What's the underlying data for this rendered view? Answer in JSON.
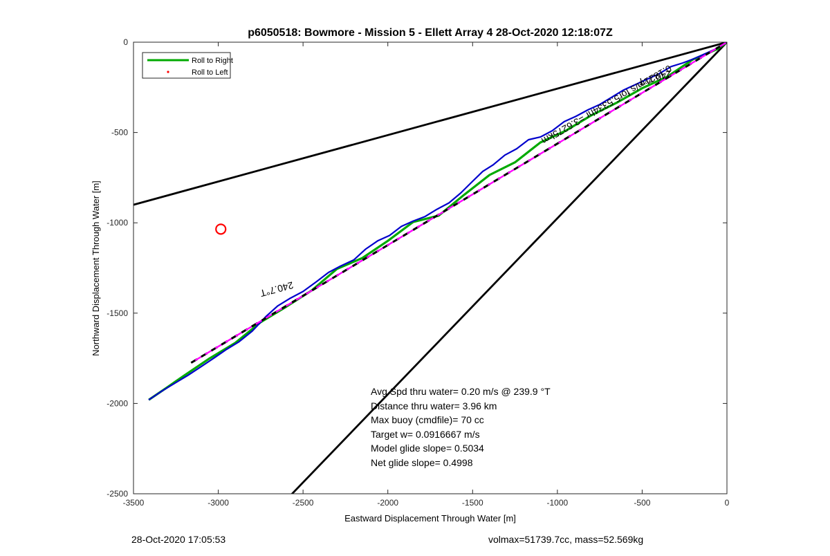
{
  "chart_data": {
    "type": "line",
    "title": "p6050518: Bowmore - Mission 5 - Ellett Array 4 28-Oct-2020 12:18:07Z",
    "xlabel": "Eastward Displacement Through Water [m]",
    "ylabel": "Northward Displacement Through Water [m]",
    "xlim": [
      -3500,
      0
    ],
    "ylim": [
      -2500,
      0
    ],
    "x_ticks": [
      -3500,
      -3000,
      -2500,
      -2000,
      -1500,
      -1000,
      -500,
      0
    ],
    "y_ticks": [
      0,
      -500,
      -1000,
      -1500,
      -2000,
      -2500
    ],
    "grid": false,
    "legend": {
      "placement": "top-left",
      "entries": [
        {
          "label": "Roll to Right",
          "color": "#00aa00",
          "style": "line"
        },
        {
          "label": "Roll to Left",
          "color": "#ff0000",
          "style": "dot"
        }
      ]
    },
    "series": [
      {
        "name": "Roll to Right",
        "color": "#00aa00",
        "x": [
          -3410,
          -3300,
          -3200,
          -3050,
          -2900,
          -2750,
          -2600,
          -2450,
          -2300,
          -2150,
          -2000,
          -1850,
          -1700,
          -1550,
          -1400,
          -1250,
          -1100,
          -950,
          -800,
          -650,
          -500,
          -350,
          -200,
          -60,
          0
        ],
        "y": [
          -1980,
          -1910,
          -1845,
          -1750,
          -1665,
          -1550,
          -1465,
          -1375,
          -1255,
          -1195,
          -1100,
          -995,
          -960,
          -845,
          -735,
          -665,
          -555,
          -490,
          -405,
          -335,
          -255,
          -190,
          -95,
          -40,
          0
        ]
      },
      {
        "name": "Roll to Left",
        "color": "#ff0000",
        "style": "marker",
        "x": [
          -2985
        ],
        "y": [
          -1035
        ]
      },
      {
        "color": "#0000cc",
        "x": [
          -3410,
          -3330,
          -3260,
          -3180,
          -3100,
          -3020,
          -2950,
          -2880,
          -2800,
          -2720,
          -2650,
          -2580,
          -2500,
          -2420,
          -2350,
          -2280,
          -2200,
          -2130,
          -2060,
          -1990,
          -1920,
          -1850,
          -1780,
          -1710,
          -1640,
          -1570,
          -1500,
          -1440,
          -1380,
          -1310,
          -1240,
          -1170,
          -1100,
          -1030,
          -960,
          -890,
          -820,
          -750,
          -680,
          -610,
          -540,
          -470,
          -400,
          -330,
          -260,
          -190,
          -120,
          -60,
          0
        ],
        "y": [
          -1980,
          -1930,
          -1890,
          -1845,
          -1795,
          -1745,
          -1700,
          -1660,
          -1600,
          -1520,
          -1460,
          -1420,
          -1380,
          -1325,
          -1275,
          -1240,
          -1205,
          -1145,
          -1100,
          -1070,
          -1020,
          -990,
          -965,
          -925,
          -890,
          -835,
          -770,
          -715,
          -680,
          -625,
          -590,
          -540,
          -525,
          -490,
          -440,
          -410,
          -375,
          -345,
          -305,
          -265,
          -235,
          -205,
          -175,
          -135,
          -115,
          -90,
          -60,
          -35,
          0
        ]
      },
      {
        "color": "#000000",
        "style": "dashed",
        "x": [
          -3160,
          0
        ],
        "y": [
          -1775,
          0
        ]
      },
      {
        "color": "#ff00ff",
        "style": "dashed",
        "x": [
          -3160,
          0
        ],
        "y": [
          -1775,
          0
        ]
      },
      {
        "color": "#000000",
        "x": [
          -3500,
          0
        ],
        "y": [
          -900,
          0
        ]
      },
      {
        "color": "#000000",
        "x": [
          -2600,
          0
        ],
        "y": [
          -2535,
          0
        ]
      }
    ],
    "annotations": [
      {
        "text": "240.7°T",
        "x": -2660,
        "y": -1350,
        "angle": 165
      },
      {
        "text": "240.7°T",
        "x": -430,
        "y": -180,
        "angle": 165
      },
      {
        "text": "0.1821m/s for5.5334hr =3.6275km",
        "x": -720,
        "y": -330,
        "angle": 150
      }
    ],
    "stats": [
      "Avg Spd thru water=  0.20 m/s @ 239.9 °T",
      "Distance thru water=  3.96 km",
      "Max buoy (cmdfile)= 70 cc",
      "Target w= 0.0916667 m/s",
      "Model glide slope= 0.5034",
      "Net glide slope= 0.4998"
    ]
  },
  "footer": {
    "timestamp": "28-Oct-2020 17:05:53",
    "params": "volmax=51739.7cc, mass=52.569kg"
  }
}
